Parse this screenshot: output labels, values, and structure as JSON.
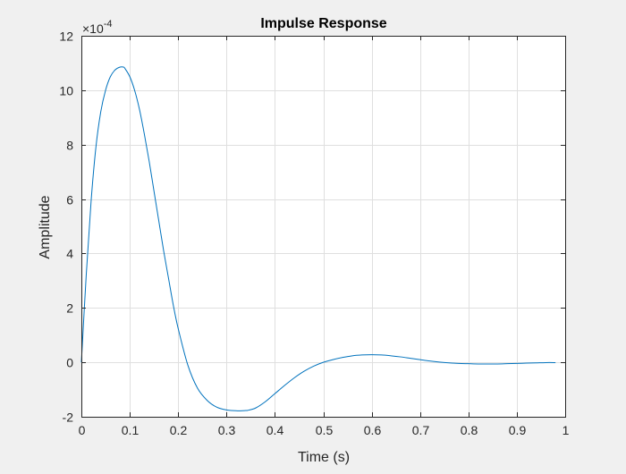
{
  "chart_data": {
    "type": "line",
    "title": "Impulse Response",
    "xlabel": "Time (s)",
    "ylabel": "Amplitude",
    "y_exponent_label": "×10",
    "y_exponent_power": "-4",
    "xlim": [
      0,
      1
    ],
    "ylim": [
      -2,
      12
    ],
    "x_ticks": [
      "0",
      "0.1",
      "0.2",
      "0.3",
      "0.4",
      "0.5",
      "0.6",
      "0.7",
      "0.8",
      "0.9",
      "1"
    ],
    "y_ticks": [
      "-2",
      "0",
      "2",
      "4",
      "6",
      "8",
      "10",
      "12"
    ],
    "grid": true,
    "series": [
      {
        "color": "#0072bd",
        "x": [
          0,
          0.01,
          0.02,
          0.03,
          0.04,
          0.05,
          0.06,
          0.07,
          0.08,
          0.087,
          0.09,
          0.1,
          0.11,
          0.12,
          0.13,
          0.14,
          0.15,
          0.16,
          0.17,
          0.18,
          0.19,
          0.2,
          0.22,
          0.24,
          0.26,
          0.28,
          0.3,
          0.32,
          0.34,
          0.345,
          0.36,
          0.38,
          0.4,
          0.42,
          0.44,
          0.46,
          0.48,
          0.5,
          0.52,
          0.54,
          0.56,
          0.58,
          0.6,
          0.62,
          0.64,
          0.66,
          0.68,
          0.7,
          0.72,
          0.74,
          0.76,
          0.78,
          0.8,
          0.82,
          0.84,
          0.86,
          0.88,
          0.9,
          0.92,
          0.94,
          0.96,
          0.98
        ],
        "y": [
          0,
          3.2,
          5.9,
          7.9,
          9.2,
          10.0,
          10.5,
          10.75,
          10.85,
          10.85,
          10.8,
          10.5,
          10.0,
          9.3,
          8.4,
          7.4,
          6.3,
          5.2,
          4.1,
          3.1,
          2.1,
          1.25,
          -0.1,
          -0.95,
          -1.4,
          -1.65,
          -1.75,
          -1.78,
          -1.77,
          -1.76,
          -1.68,
          -1.45,
          -1.15,
          -0.85,
          -0.57,
          -0.33,
          -0.14,
          -0.0,
          0.1,
          0.18,
          0.24,
          0.27,
          0.28,
          0.27,
          0.24,
          0.2,
          0.15,
          0.1,
          0.05,
          0.01,
          -0.02,
          -0.04,
          -0.05,
          -0.06,
          -0.06,
          -0.06,
          -0.05,
          -0.04,
          -0.03,
          -0.02,
          -0.01,
          -0.01
        ]
      }
    ]
  }
}
